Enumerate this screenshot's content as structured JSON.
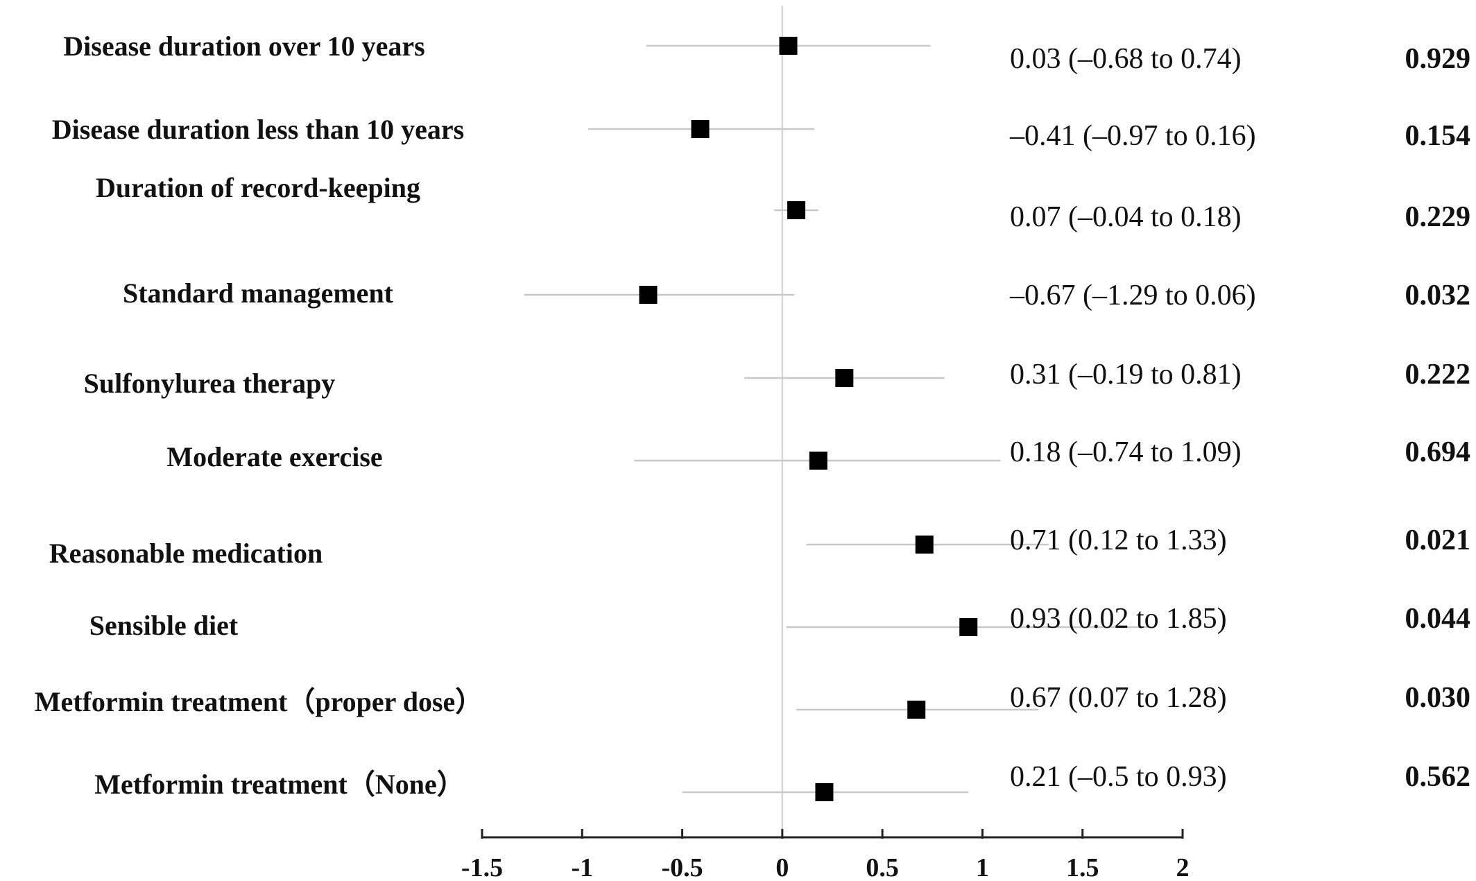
{
  "chart_data": {
    "type": "forest",
    "xlim": [
      -1.5,
      2
    ],
    "x_ticks": [
      "-1.5",
      "-1",
      "-0.5",
      "0",
      "0.5",
      "1",
      "1.5",
      "2"
    ],
    "x_tick_values": [
      -1.5,
      -1,
      -0.5,
      0,
      0.5,
      1,
      1.5,
      2
    ],
    "reference_line": 0,
    "rows": [
      {
        "label": "Disease duration over 10 years",
        "estimate": 0.03,
        "lower": -0.68,
        "upper": 0.74,
        "ci_text": "0.03 (–0.68 to 0.74)",
        "p": "0.929"
      },
      {
        "label": "Disease duration less than 10 years",
        "estimate": -0.41,
        "lower": -0.97,
        "upper": 0.16,
        "ci_text": "–0.41 (–0.97 to 0.16)",
        "p": "0.154"
      },
      {
        "label": "Duration of record-keeping",
        "estimate": 0.07,
        "lower": -0.04,
        "upper": 0.18,
        "ci_text": "0.07 (–0.04 to 0.18)",
        "p": "0.229"
      },
      {
        "label": "Standard management",
        "estimate": -0.67,
        "lower": -1.29,
        "upper": 0.06,
        "ci_text": "–0.67 (–1.29 to 0.06)",
        "p": "0.032"
      },
      {
        "label": "Sulfonylurea therapy",
        "estimate": 0.31,
        "lower": -0.19,
        "upper": 0.81,
        "ci_text": "0.31 (–0.19 to 0.81)",
        "p": "0.222"
      },
      {
        "label": "Moderate exercise",
        "estimate": 0.18,
        "lower": -0.74,
        "upper": 1.09,
        "ci_text": "0.18 (–0.74 to 1.09)",
        "p": "0.694"
      },
      {
        "label": "Reasonable medication",
        "estimate": 0.71,
        "lower": 0.12,
        "upper": 1.33,
        "ci_text": "0.71 (0.12 to 1.33)",
        "p": "0.021"
      },
      {
        "label": "Sensible  diet",
        "estimate": 0.93,
        "lower": 0.02,
        "upper": 1.85,
        "ci_text": "0.93 (0.02 to 1.85)",
        "p": "0.044"
      },
      {
        "label": "Metformin    treatment（proper dose）",
        "estimate": 0.67,
        "lower": 0.07,
        "upper": 1.28,
        "ci_text": "0.67 (0.07 to 1.28)",
        "p": "0.030"
      },
      {
        "label": "Metformin treatment（None）",
        "estimate": 0.21,
        "lower": -0.5,
        "upper": 0.93,
        "ci_text": "0.21 (–0.5 to 0.93)",
        "p": "0.562"
      }
    ],
    "colors": {
      "marker": "#000000",
      "ci_line": "#c8c8c8",
      "reference": "#cfcfcf",
      "axis": "#222222"
    }
  }
}
